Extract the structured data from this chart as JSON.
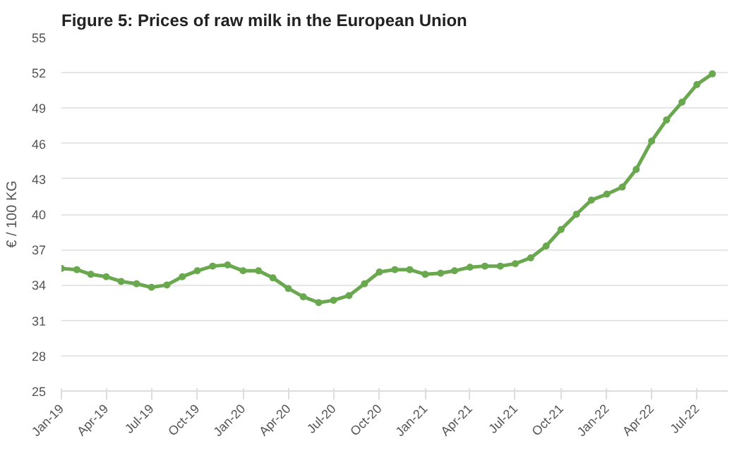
{
  "chart_data": {
    "type": "line",
    "title": "Figure 5: Prices of raw milk in the European Union",
    "ylabel": "€ / 100 KG",
    "x": [
      "2019-01",
      "2019-02",
      "2019-03",
      "2019-04",
      "2019-05",
      "2019-06",
      "2019-07",
      "2019-08",
      "2019-09",
      "2019-10",
      "2019-11",
      "2019-12",
      "2020-01",
      "2020-02",
      "2020-03",
      "2020-04",
      "2020-05",
      "2020-06",
      "2020-07",
      "2020-08",
      "2020-09",
      "2020-10",
      "2020-11",
      "2020-12",
      "2021-01",
      "2021-02",
      "2021-03",
      "2021-04",
      "2021-05",
      "2021-06",
      "2021-07",
      "2021-08",
      "2021-09",
      "2021-10",
      "2021-11",
      "2021-12",
      "2022-01",
      "2022-02",
      "2022-03",
      "2022-04",
      "2022-05",
      "2022-06",
      "2022-07",
      "2022-08"
    ],
    "series": [
      {
        "color": "#6aa84f",
        "values": [
          35.4,
          35.3,
          34.9,
          34.7,
          34.3,
          34.1,
          33.8,
          34.0,
          34.7,
          35.2,
          35.6,
          35.7,
          35.2,
          35.2,
          34.6,
          33.7,
          33.0,
          32.5,
          32.7,
          33.1,
          34.1,
          35.1,
          35.3,
          35.3,
          34.9,
          35.0,
          35.2,
          35.5,
          35.6,
          35.6,
          35.8,
          36.3,
          37.3,
          38.7,
          40.0,
          41.2,
          41.7,
          42.3,
          43.8,
          46.2,
          48.0,
          49.5,
          51.0,
          51.9
        ]
      }
    ],
    "xlim": [
      "2019-01",
      "2022-09"
    ],
    "xticks": [
      {
        "value": "2019-01",
        "label": "Jan-19"
      },
      {
        "value": "2019-04",
        "label": "Apr-19"
      },
      {
        "value": "2019-07",
        "label": "Jul-19"
      },
      {
        "value": "2019-10",
        "label": "Oct-19"
      },
      {
        "value": "2020-01",
        "label": "Jan-20"
      },
      {
        "value": "2020-04",
        "label": "Apr-20"
      },
      {
        "value": "2020-07",
        "label": "Jul-20"
      },
      {
        "value": "2020-10",
        "label": "Oct-20"
      },
      {
        "value": "2021-01",
        "label": "Jan-21"
      },
      {
        "value": "2021-04",
        "label": "Apr-21"
      },
      {
        "value": "2021-07",
        "label": "Jul-21"
      },
      {
        "value": "2021-10",
        "label": "Oct-21"
      },
      {
        "value": "2022-01",
        "label": "Jan-22"
      },
      {
        "value": "2022-04",
        "label": "Apr-22"
      },
      {
        "value": "2022-07",
        "label": "Jul-22"
      }
    ],
    "ylim": [
      25,
      55
    ],
    "yticks": [
      25,
      28,
      31,
      34,
      37,
      40,
      43,
      46,
      49,
      52,
      55
    ],
    "grid": "y",
    "marker": "circle",
    "line_style": "solid"
  }
}
